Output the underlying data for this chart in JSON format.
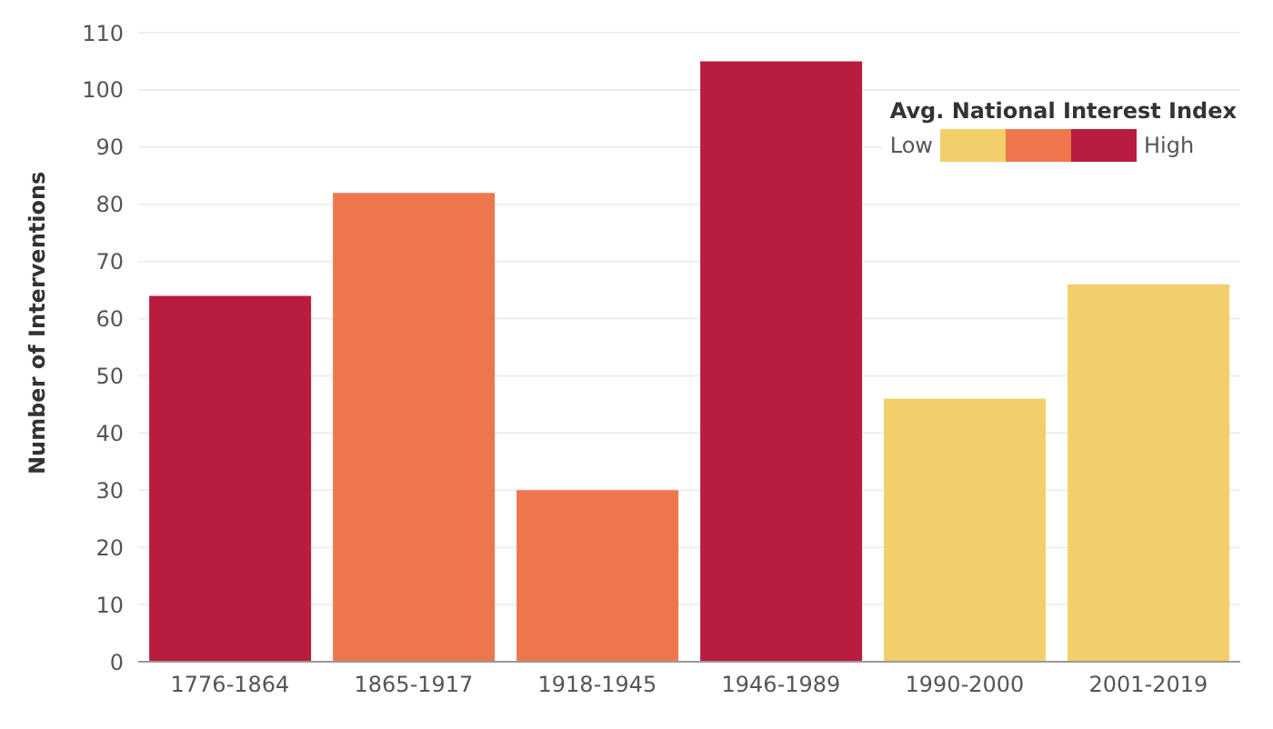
{
  "chart_data": {
    "type": "bar",
    "ylabel": "Number of Interventions",
    "legend_title": "Avg. National Interest Index",
    "annotations": [
      "Low",
      "High"
    ],
    "categories": [
      "1776-1864",
      "1865-1917",
      "1918-1945",
      "1946-1989",
      "1990-2000",
      "2001-2019"
    ],
    "values": [
      64,
      82,
      30,
      105,
      46,
      66
    ],
    "colors": [
      "#b81c3e",
      "#ee764d",
      "#ee764d",
      "#b81c3e",
      "#f2cf6a",
      "#f2cf6a"
    ],
    "ylim": [
      0,
      110
    ],
    "yticks": [
      0,
      10,
      20,
      30,
      40,
      50,
      60,
      70,
      80,
      90,
      100,
      110
    ],
    "grid": "y"
  }
}
